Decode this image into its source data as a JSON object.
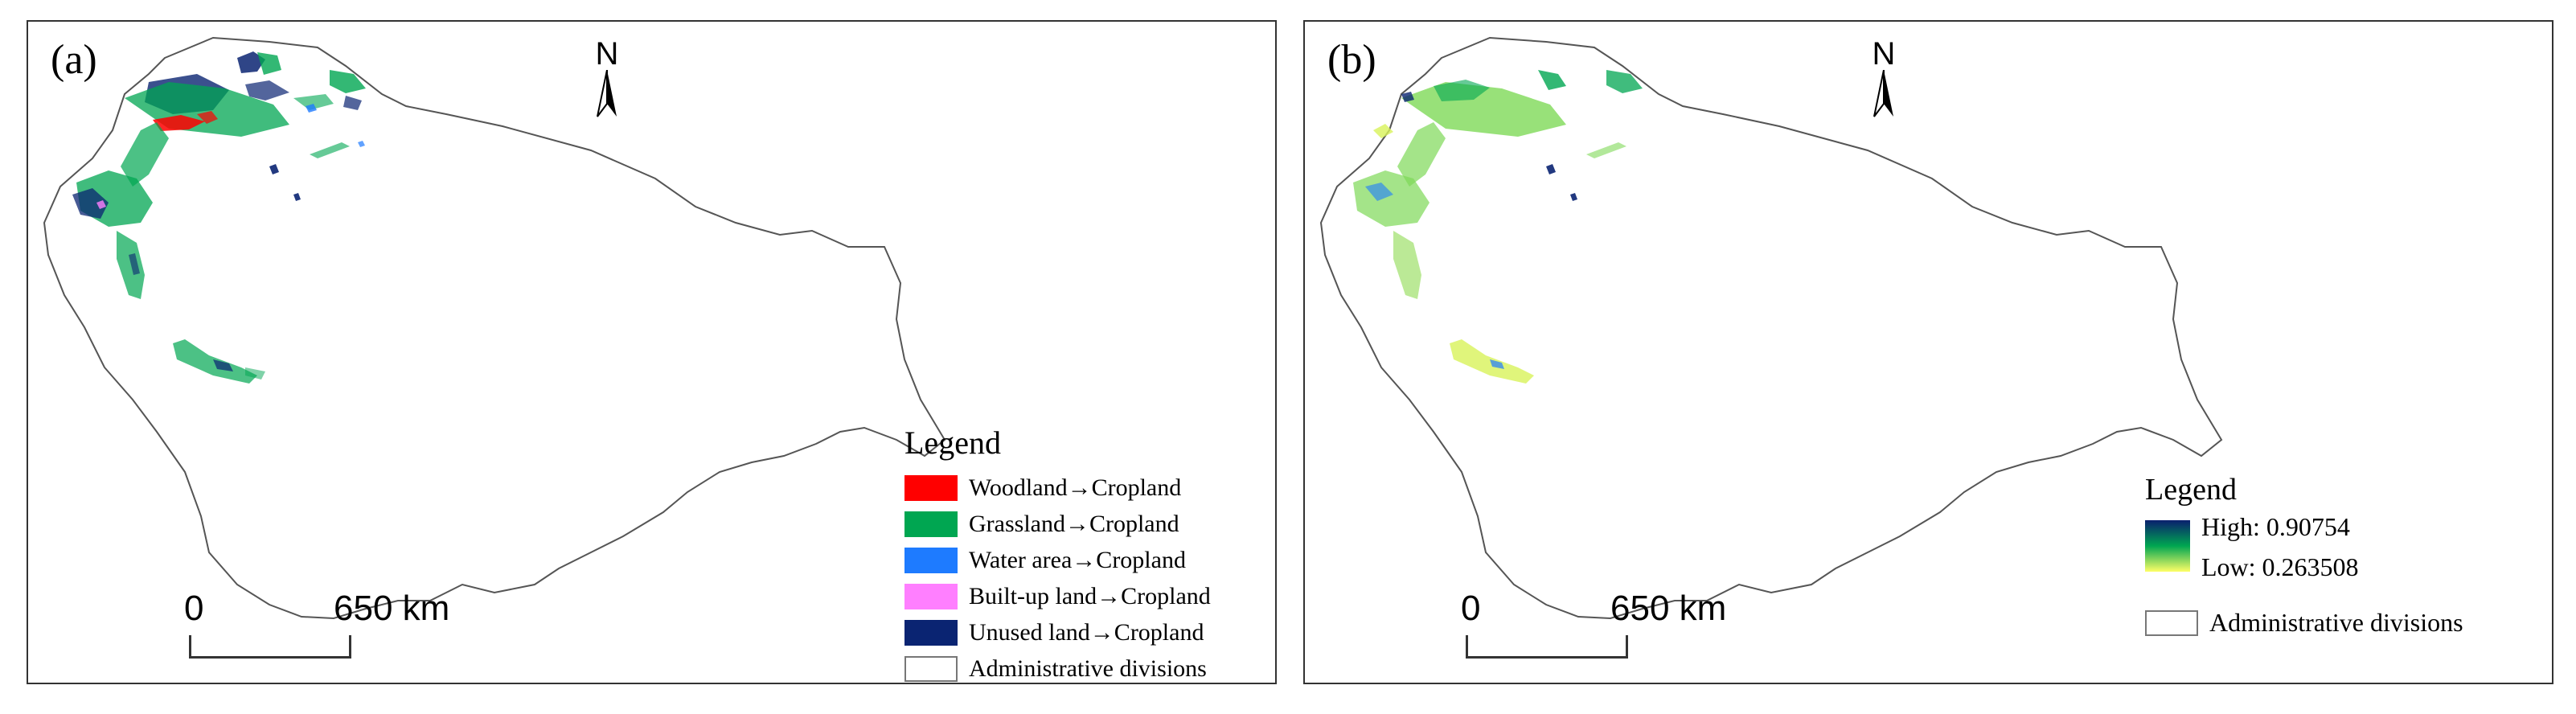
{
  "panels": {
    "a": {
      "letter": "(a)",
      "north": "N",
      "scale": {
        "start": "0",
        "end": "650 km"
      },
      "legend": {
        "title": "Legend",
        "items": [
          {
            "label": "Woodland→Cropland",
            "color": "#ff0000"
          },
          {
            "label": "Grassland→Cropland",
            "color": "#00a651"
          },
          {
            "label": "Water area→Cropland",
            "color": "#1e7bff"
          },
          {
            "label": "Built-up land→Cropland",
            "color": "#ff7fff"
          },
          {
            "label": "Unused land→Cropland",
            "color": "#0a2472"
          },
          {
            "label": "Administrative divisions",
            "color": "#ffffff"
          }
        ]
      }
    },
    "b": {
      "letter": "(b)",
      "north": "N",
      "scale": {
        "start": "0",
        "end": "650 km"
      },
      "legend": {
        "title": "Legend",
        "high": "High: 0.90754",
        "low": "Low: 0.263508",
        "gradient": [
          "#0a1f6e",
          "#00a651",
          "#ffff66"
        ],
        "admin": "Administrative divisions"
      }
    }
  }
}
